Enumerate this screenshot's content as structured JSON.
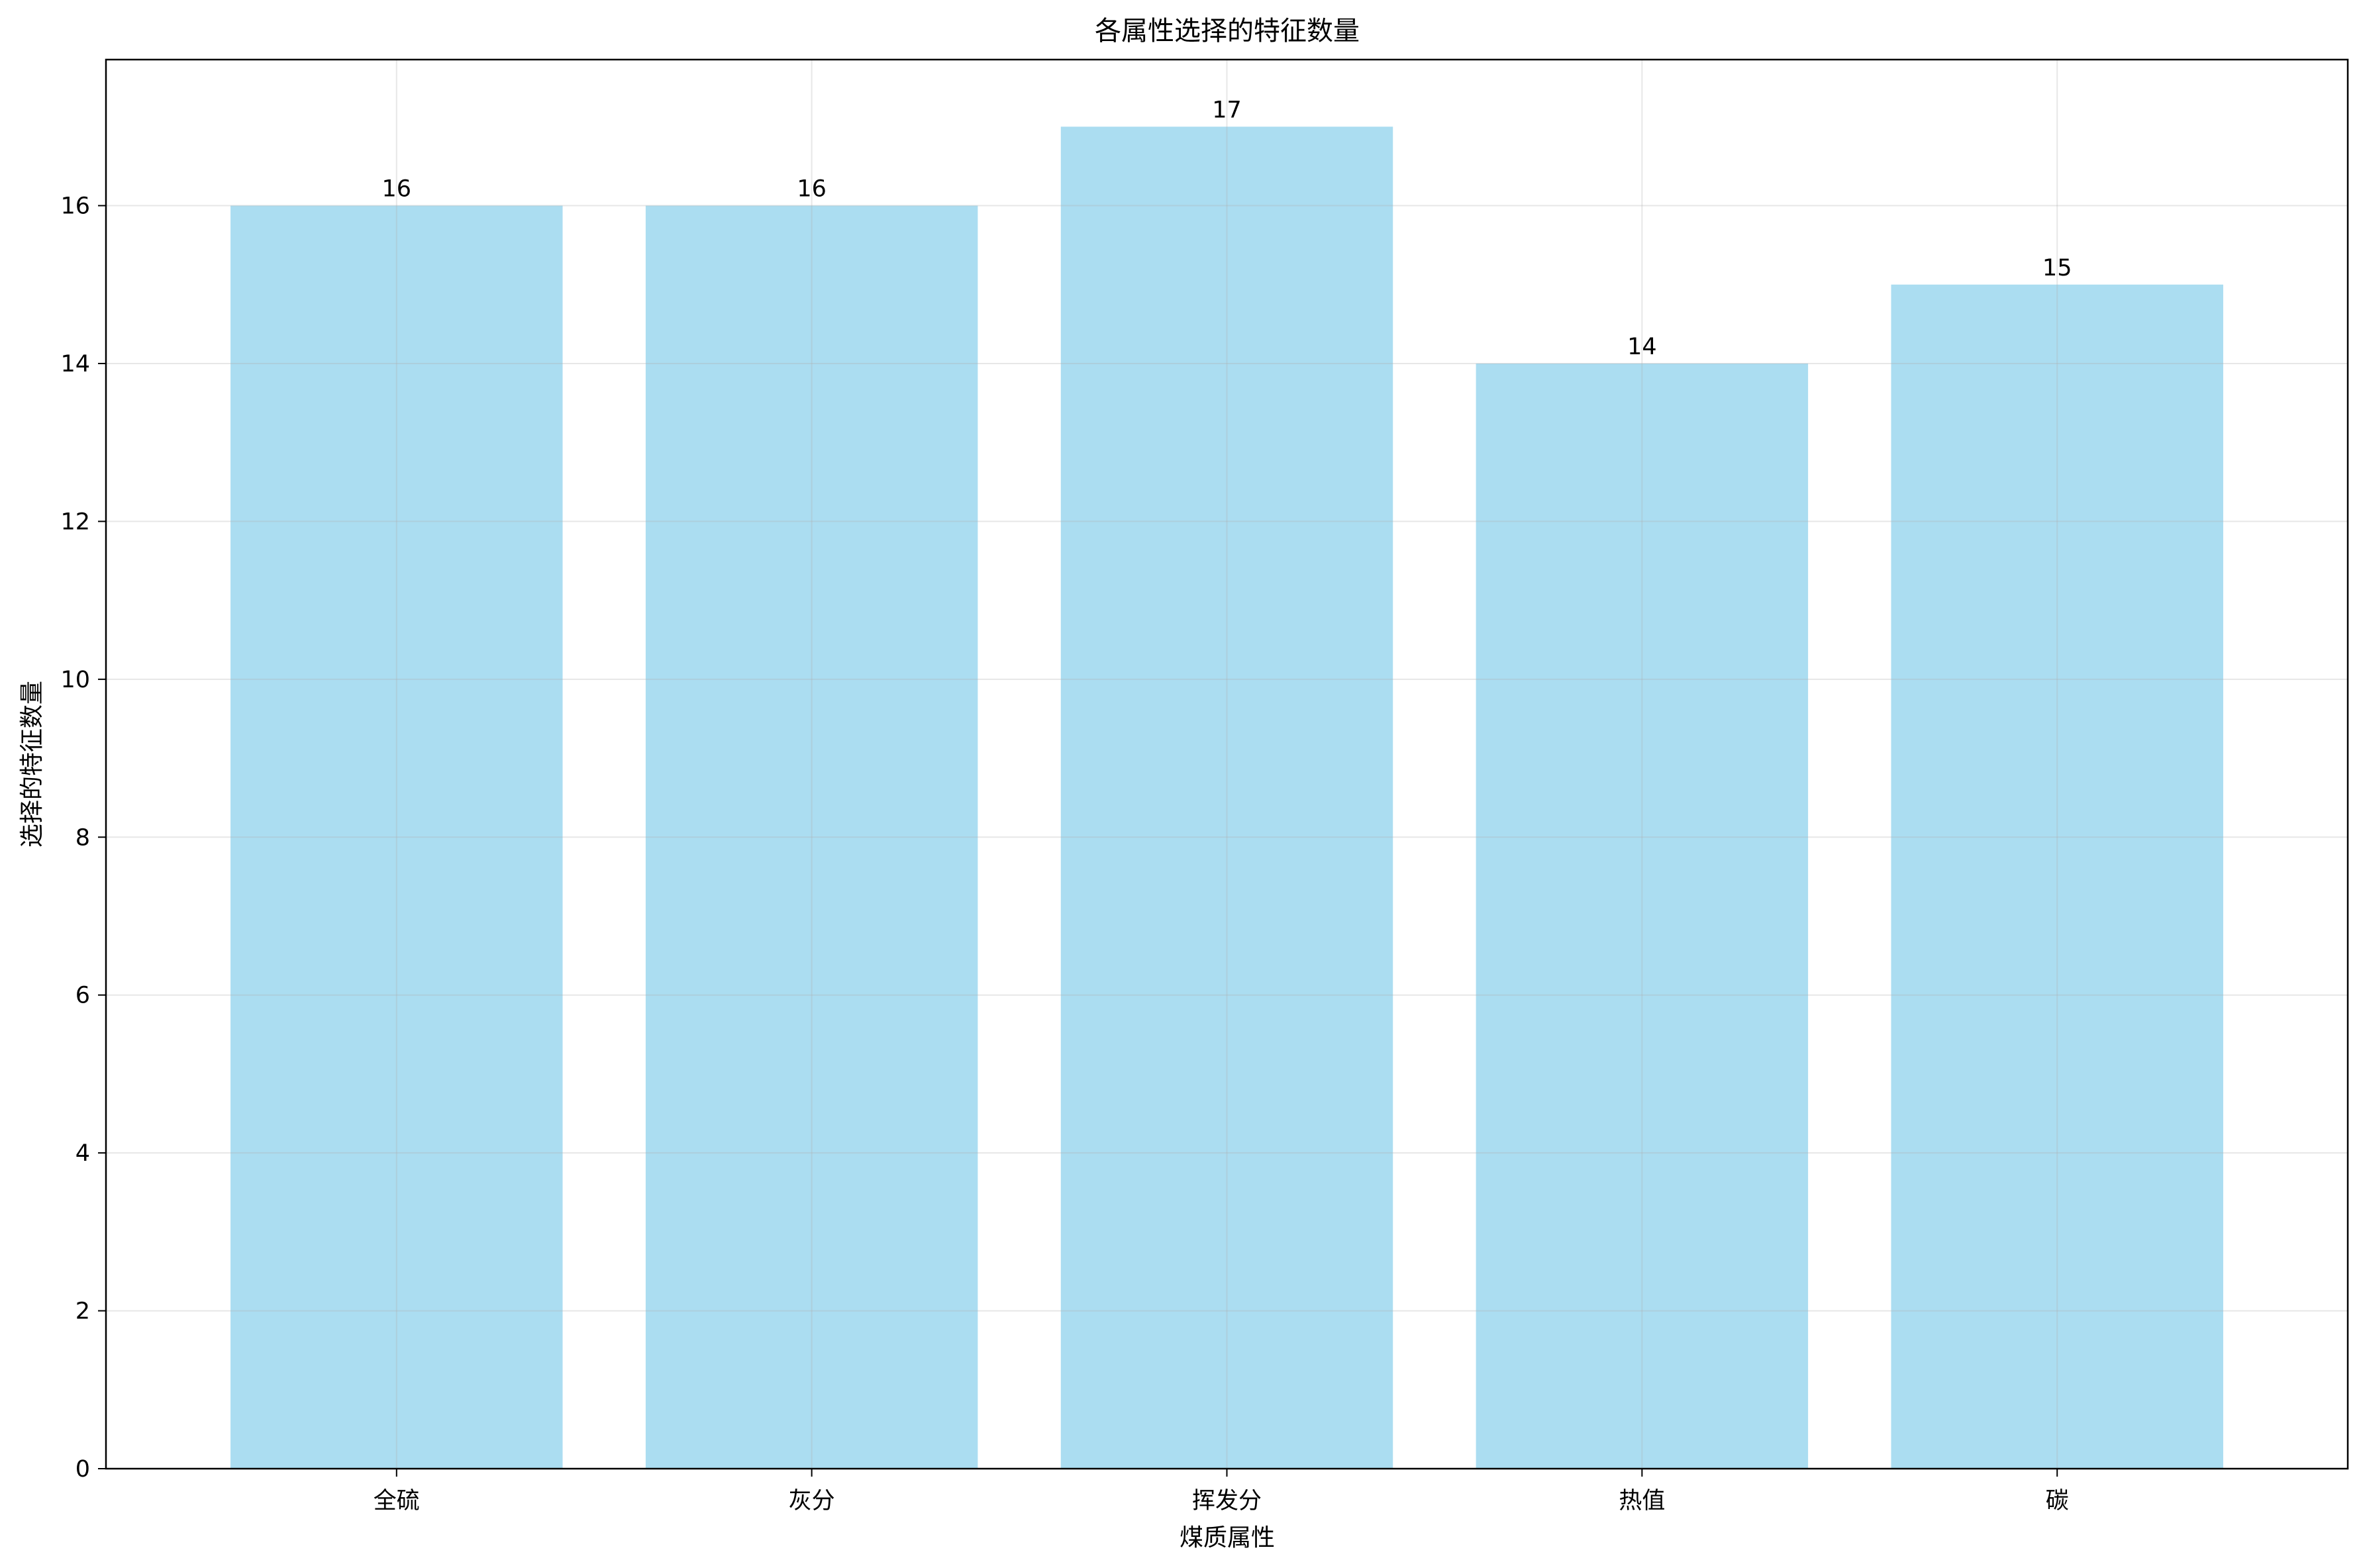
{
  "chart_data": {
    "type": "bar",
    "title": "各属性选择的特征数量",
    "xlabel": "煤质属性",
    "ylabel": "选择的特征数量",
    "categories": [
      "全硫",
      "灰分",
      "挥发分",
      "热值",
      "碳"
    ],
    "values": [
      16,
      16,
      17,
      14,
      15
    ],
    "data_labels": [
      "16",
      "16",
      "17",
      "14",
      "15"
    ],
    "ylim": [
      0,
      17.85
    ],
    "yticks": [
      0,
      2,
      4,
      6,
      8,
      10,
      12,
      14,
      16
    ],
    "grid": true,
    "legend": "none",
    "bar_color": "#87CEEB",
    "bar_opacity": 0.7
  }
}
